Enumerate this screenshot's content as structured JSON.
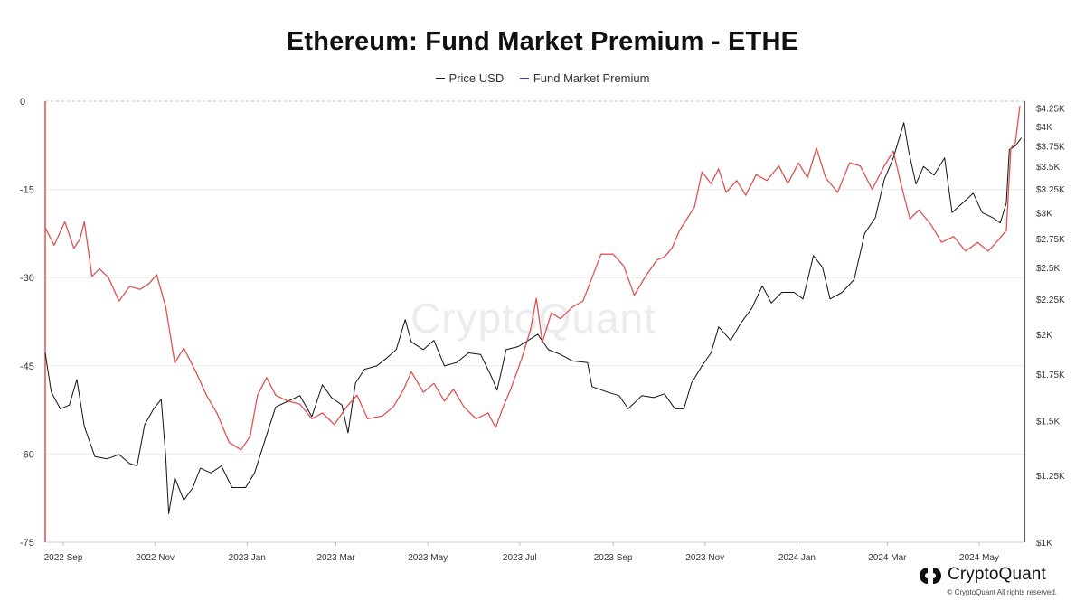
{
  "chart_data": {
    "type": "line",
    "title": "Ethereum: Fund Market Premium - ETHE",
    "watermark": "CryptoQuant",
    "legend_placement": "top-center",
    "grid": true,
    "x_ticks": [
      "2022 Sep",
      "2022 Nov",
      "2023 Jan",
      "2023 Mar",
      "2023 May",
      "2023 Jul",
      "2023 Sep",
      "2023 Nov",
      "2024 Jan",
      "2024 Mar",
      "2024 May"
    ],
    "x_range": [
      "2022-08-20",
      "2024-05-31"
    ],
    "y_left": {
      "ticks": [
        "0",
        "-15",
        "-30",
        "-45",
        "-60",
        "-75"
      ],
      "range": [
        -75,
        0
      ]
    },
    "y_right": {
      "scale": "log",
      "ticks": [
        "$4.25K",
        "$4K",
        "$3.75K",
        "$3.5K",
        "$3.25K",
        "$3K",
        "$2.75K",
        "$2.5K",
        "$2.25K",
        "$2K",
        "$1.75K",
        "$1.5K",
        "$1.25K",
        "$1K"
      ],
      "range": [
        1000,
        4350
      ]
    },
    "series": [
      {
        "name": "Price USD",
        "legend_color": "#222222",
        "line_color": "#111111",
        "axis": "right",
        "points": [
          [
            "2022-08-20",
            1880
          ],
          [
            "2022-08-24",
            1650
          ],
          [
            "2022-08-30",
            1560
          ],
          [
            "2022-09-05",
            1580
          ],
          [
            "2022-09-10",
            1720
          ],
          [
            "2022-09-15",
            1470
          ],
          [
            "2022-09-22",
            1330
          ],
          [
            "2022-09-30",
            1320
          ],
          [
            "2022-10-08",
            1340
          ],
          [
            "2022-10-15",
            1300
          ],
          [
            "2022-10-20",
            1290
          ],
          [
            "2022-10-25",
            1480
          ],
          [
            "2022-10-31",
            1560
          ],
          [
            "2022-11-05",
            1610
          ],
          [
            "2022-11-08",
            1330
          ],
          [
            "2022-11-10",
            1100
          ],
          [
            "2022-11-14",
            1240
          ],
          [
            "2022-11-20",
            1150
          ],
          [
            "2022-11-26",
            1200
          ],
          [
            "2022-12-01",
            1280
          ],
          [
            "2022-12-08",
            1260
          ],
          [
            "2022-12-15",
            1290
          ],
          [
            "2022-12-22",
            1200
          ],
          [
            "2022-12-31",
            1200
          ],
          [
            "2023-01-06",
            1260
          ],
          [
            "2023-01-14",
            1430
          ],
          [
            "2023-01-20",
            1570
          ],
          [
            "2023-01-28",
            1600
          ],
          [
            "2023-02-05",
            1630
          ],
          [
            "2023-02-13",
            1520
          ],
          [
            "2023-02-20",
            1690
          ],
          [
            "2023-02-26",
            1620
          ],
          [
            "2023-03-05",
            1580
          ],
          [
            "2023-03-09",
            1440
          ],
          [
            "2023-03-14",
            1700
          ],
          [
            "2023-03-20",
            1780
          ],
          [
            "2023-03-28",
            1800
          ],
          [
            "2023-04-04",
            1850
          ],
          [
            "2023-04-10",
            1900
          ],
          [
            "2023-04-16",
            2100
          ],
          [
            "2023-04-20",
            1950
          ],
          [
            "2023-04-28",
            1900
          ],
          [
            "2023-05-05",
            1960
          ],
          [
            "2023-05-12",
            1800
          ],
          [
            "2023-05-20",
            1820
          ],
          [
            "2023-05-28",
            1880
          ],
          [
            "2023-06-05",
            1870
          ],
          [
            "2023-06-12",
            1740
          ],
          [
            "2023-06-16",
            1660
          ],
          [
            "2023-06-22",
            1900
          ],
          [
            "2023-06-30",
            1920
          ],
          [
            "2023-07-05",
            1950
          ],
          [
            "2023-07-13",
            2000
          ],
          [
            "2023-07-20",
            1900
          ],
          [
            "2023-07-28",
            1870
          ],
          [
            "2023-08-05",
            1830
          ],
          [
            "2023-08-15",
            1820
          ],
          [
            "2023-08-18",
            1680
          ],
          [
            "2023-08-28",
            1650
          ],
          [
            "2023-09-05",
            1630
          ],
          [
            "2023-09-11",
            1560
          ],
          [
            "2023-09-20",
            1630
          ],
          [
            "2023-09-28",
            1620
          ],
          [
            "2023-10-05",
            1640
          ],
          [
            "2023-10-12",
            1560
          ],
          [
            "2023-10-18",
            1560
          ],
          [
            "2023-10-23",
            1700
          ],
          [
            "2023-10-30",
            1800
          ],
          [
            "2023-11-05",
            1880
          ],
          [
            "2023-11-10",
            2050
          ],
          [
            "2023-11-18",
            1960
          ],
          [
            "2023-11-25",
            2080
          ],
          [
            "2023-12-02",
            2180
          ],
          [
            "2023-12-09",
            2350
          ],
          [
            "2023-12-15",
            2220
          ],
          [
            "2023-12-22",
            2300
          ],
          [
            "2023-12-30",
            2300
          ],
          [
            "2024-01-05",
            2250
          ],
          [
            "2024-01-12",
            2600
          ],
          [
            "2024-01-18",
            2500
          ],
          [
            "2024-01-23",
            2250
          ],
          [
            "2024-01-31",
            2300
          ],
          [
            "2024-02-08",
            2400
          ],
          [
            "2024-02-15",
            2800
          ],
          [
            "2024-02-22",
            2950
          ],
          [
            "2024-02-28",
            3350
          ],
          [
            "2024-03-05",
            3600
          ],
          [
            "2024-03-12",
            4050
          ],
          [
            "2024-03-15",
            3700
          ],
          [
            "2024-03-20",
            3300
          ],
          [
            "2024-03-25",
            3500
          ],
          [
            "2024-04-01",
            3400
          ],
          [
            "2024-04-08",
            3600
          ],
          [
            "2024-04-13",
            3000
          ],
          [
            "2024-04-20",
            3100
          ],
          [
            "2024-04-27",
            3200
          ],
          [
            "2024-05-03",
            3000
          ],
          [
            "2024-05-10",
            2950
          ],
          [
            "2024-05-15",
            2900
          ],
          [
            "2024-05-19",
            3100
          ],
          [
            "2024-05-21",
            3700
          ],
          [
            "2024-05-25",
            3750
          ],
          [
            "2024-05-29",
            3850
          ]
        ]
      },
      {
        "name": "Fund Market Premium",
        "legend_color": "#3b3bd9",
        "line_color": "#e05252",
        "axis": "left",
        "points": [
          [
            "2022-08-20",
            -21.5
          ],
          [
            "2022-08-26",
            -24.5
          ],
          [
            "2022-09-02",
            -20.5
          ],
          [
            "2022-09-08",
            -25.0
          ],
          [
            "2022-09-12",
            -23.5
          ],
          [
            "2022-09-15",
            -20.5
          ],
          [
            "2022-09-20",
            -29.8
          ],
          [
            "2022-09-25",
            -28.5
          ],
          [
            "2022-10-01",
            -30.0
          ],
          [
            "2022-10-08",
            -34.0
          ],
          [
            "2022-10-15",
            -31.5
          ],
          [
            "2022-10-22",
            -32.0
          ],
          [
            "2022-10-28",
            -31.0
          ],
          [
            "2022-11-02",
            -29.5
          ],
          [
            "2022-11-08",
            -35.0
          ],
          [
            "2022-11-14",
            -44.5
          ],
          [
            "2022-11-20",
            -42.0
          ],
          [
            "2022-11-28",
            -46.0
          ],
          [
            "2022-12-05",
            -50.0
          ],
          [
            "2022-12-12",
            -53.0
          ],
          [
            "2022-12-20",
            -58.0
          ],
          [
            "2022-12-28",
            -59.3
          ],
          [
            "2023-01-03",
            -57.0
          ],
          [
            "2023-01-08",
            -50.0
          ],
          [
            "2023-01-14",
            -47.0
          ],
          [
            "2023-01-20",
            -50.0
          ],
          [
            "2023-01-28",
            -51.0
          ],
          [
            "2023-02-05",
            -51.5
          ],
          [
            "2023-02-13",
            -54.0
          ],
          [
            "2023-02-20",
            -53.0
          ],
          [
            "2023-02-28",
            -55.0
          ],
          [
            "2023-03-08",
            -52.0
          ],
          [
            "2023-03-15",
            -50.0
          ],
          [
            "2023-03-22",
            -54.0
          ],
          [
            "2023-04-01",
            -53.5
          ],
          [
            "2023-04-08",
            -52.0
          ],
          [
            "2023-04-15",
            -49.0
          ],
          [
            "2023-04-20",
            -46.0
          ],
          [
            "2023-04-28",
            -49.5
          ],
          [
            "2023-05-05",
            -48.0
          ],
          [
            "2023-05-12",
            -51.0
          ],
          [
            "2023-05-18",
            -49.0
          ],
          [
            "2023-05-25",
            -52.0
          ],
          [
            "2023-06-02",
            -54.0
          ],
          [
            "2023-06-10",
            -53.0
          ],
          [
            "2023-06-15",
            -55.5
          ],
          [
            "2023-06-20",
            -52.0
          ],
          [
            "2023-06-25",
            -49.0
          ],
          [
            "2023-07-02",
            -44.0
          ],
          [
            "2023-07-08",
            -39.0
          ],
          [
            "2023-07-12",
            -33.5
          ],
          [
            "2023-07-16",
            -41.0
          ],
          [
            "2023-07-22",
            -36.0
          ],
          [
            "2023-07-28",
            -37.0
          ],
          [
            "2023-08-05",
            -35.0
          ],
          [
            "2023-08-12",
            -34.0
          ],
          [
            "2023-08-18",
            -30.0
          ],
          [
            "2023-08-24",
            -26.0
          ],
          [
            "2023-09-01",
            -26.0
          ],
          [
            "2023-09-08",
            -28.0
          ],
          [
            "2023-09-15",
            -33.0
          ],
          [
            "2023-09-22",
            -30.0
          ],
          [
            "2023-09-30",
            -27.0
          ],
          [
            "2023-10-05",
            -26.5
          ],
          [
            "2023-10-10",
            -25.0
          ],
          [
            "2023-10-15",
            -22.0
          ],
          [
            "2023-10-20",
            -20.0
          ],
          [
            "2023-10-25",
            -18.0
          ],
          [
            "2023-10-30",
            -12.0
          ],
          [
            "2023-11-05",
            -14.0
          ],
          [
            "2023-11-10",
            -11.5
          ],
          [
            "2023-11-15",
            -15.5
          ],
          [
            "2023-11-22",
            -13.5
          ],
          [
            "2023-11-28",
            -16.0
          ],
          [
            "2023-12-05",
            -12.5
          ],
          [
            "2023-12-12",
            -13.5
          ],
          [
            "2023-12-20",
            -11.0
          ],
          [
            "2023-12-26",
            -14.0
          ],
          [
            "2024-01-02",
            -10.5
          ],
          [
            "2024-01-08",
            -13.0
          ],
          [
            "2024-01-14",
            -8.0
          ],
          [
            "2024-01-20",
            -13.0
          ],
          [
            "2024-01-28",
            -15.5
          ],
          [
            "2024-02-05",
            -10.5
          ],
          [
            "2024-02-12",
            -11.0
          ],
          [
            "2024-02-20",
            -15.0
          ],
          [
            "2024-02-28",
            -11.0
          ],
          [
            "2024-03-05",
            -8.5
          ],
          [
            "2024-03-10",
            -14.0
          ],
          [
            "2024-03-16",
            -20.0
          ],
          [
            "2024-03-22",
            -18.5
          ],
          [
            "2024-03-30",
            -21.0
          ],
          [
            "2024-04-06",
            -24.0
          ],
          [
            "2024-04-14",
            -23.0
          ],
          [
            "2024-04-22",
            -25.5
          ],
          [
            "2024-04-30",
            -24.0
          ],
          [
            "2024-05-07",
            -25.5
          ],
          [
            "2024-05-14",
            -23.5
          ],
          [
            "2024-05-19",
            -22.0
          ],
          [
            "2024-05-22",
            -8.0
          ],
          [
            "2024-05-25",
            -7.0
          ],
          [
            "2024-05-28",
            -0.8
          ]
        ]
      }
    ]
  },
  "footer": {
    "brand_name": "CryptoQuant",
    "copyright": "© CryptoQuant All rights reserved."
  }
}
